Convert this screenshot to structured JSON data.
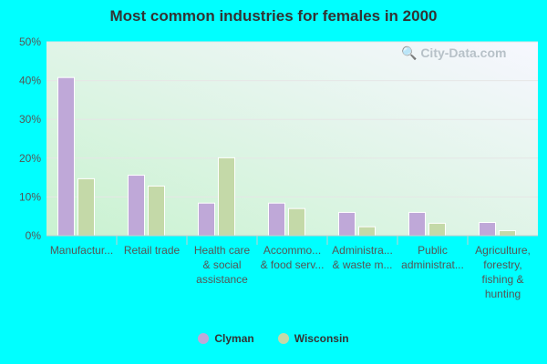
{
  "chart_data": {
    "type": "bar",
    "title": "Most common industries for females in 2000",
    "categories": [
      [
        "Manufactur..."
      ],
      [
        "Retail trade"
      ],
      [
        "Health care",
        "& social",
        "assistance"
      ],
      [
        "Accommo...",
        "& food serv..."
      ],
      [
        "Administra...",
        "& waste m..."
      ],
      [
        "Public",
        "administrat..."
      ],
      [
        "Agriculture,",
        "forestry,",
        "fishing &",
        "hunting"
      ]
    ],
    "series": [
      {
        "name": "Clyman",
        "color": "#bfa8d8",
        "values": [
          40.8,
          15.6,
          8.4,
          8.4,
          6.0,
          6.0,
          3.4
        ]
      },
      {
        "name": "Wisconsin",
        "color": "#c4d9a8",
        "values": [
          14.7,
          12.8,
          20.1,
          7.0,
          2.3,
          3.2,
          1.3
        ]
      }
    ],
    "yticks": [
      "0%",
      "10%",
      "20%",
      "30%",
      "40%",
      "50%"
    ],
    "ylim": [
      0,
      50
    ],
    "grid": true,
    "legend": "bottom",
    "watermark": "City-Data.com"
  }
}
